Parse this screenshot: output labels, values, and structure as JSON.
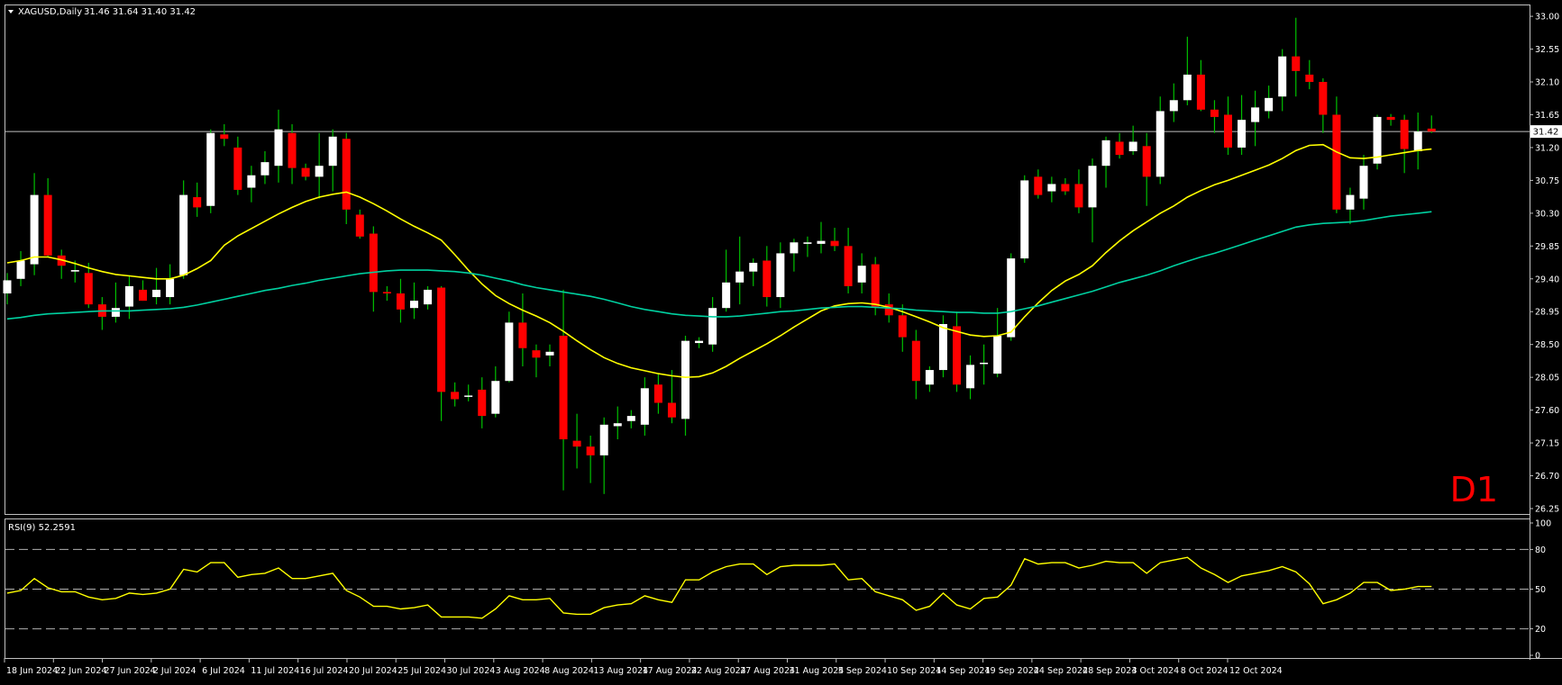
{
  "header": {
    "symbol_text": "XAGUSD,Daily",
    "ohlc_text": "31.46 31.64 31.40 31.42"
  },
  "timeframe_label": "D1",
  "rsi_header": "RSI(9) 52.2591",
  "colors": {
    "background": "#000000",
    "frame": "#c0c0c0",
    "bull": "#ffffff",
    "bear": "#ff0000",
    "wick": "#00c000",
    "ma_fast": "#ffff00",
    "ma_slow": "#00d0a0",
    "rsi": "#ffff00",
    "timeframe": "#ff0000"
  },
  "chart_data": [
    {
      "type": "candlestick",
      "symbol": "XAGUSD",
      "current_price": 31.42,
      "current_price_label": "31.42",
      "ylim": [
        26.25,
        33.1
      ],
      "y_ticks": [
        "33.00",
        "32.55",
        "32.10",
        "31.65",
        "31.20",
        "30.75",
        "30.30",
        "29.85",
        "29.40",
        "28.95",
        "28.50",
        "28.05",
        "27.60",
        "27.15",
        "26.70",
        "26.25"
      ],
      "x_ticks": [
        "18 Jun 2024",
        "22 Jun 2024",
        "27 Jun 2024",
        "2 Jul 2024",
        "6 Jul 2024",
        "11 Jul 2024",
        "16 Jul 2024",
        "20 Jul 2024",
        "25 Jul 2024",
        "30 Jul 2024",
        "3 Aug 2024",
        "8 Aug 2024",
        "13 Aug 2024",
        "17 Aug 2024",
        "22 Aug 2024",
        "27 Aug 2024",
        "31 Aug 2024",
        "5 Sep 2024",
        "10 Sep 2024",
        "14 Sep 2024",
        "19 Sep 2024",
        "24 Sep 2024",
        "28 Sep 2024",
        "3 Oct 2024",
        "8 Oct 2024",
        "12 Oct 2024"
      ],
      "candles": [
        [
          29.2,
          29.48,
          29.05,
          29.38
        ],
        [
          29.4,
          29.78,
          29.3,
          29.65
        ],
        [
          29.6,
          30.85,
          29.45,
          30.55
        ],
        [
          30.55,
          30.78,
          29.7,
          29.72
        ],
        [
          29.72,
          29.8,
          29.4,
          29.58
        ],
        [
          29.5,
          29.65,
          29.35,
          29.52
        ],
        [
          29.48,
          29.62,
          29.0,
          29.05
        ],
        [
          29.05,
          29.15,
          28.7,
          28.88
        ],
        [
          28.88,
          29.35,
          28.8,
          29.0
        ],
        [
          29.02,
          29.45,
          28.85,
          29.3
        ],
        [
          29.25,
          29.38,
          29.1,
          29.1
        ],
        [
          29.15,
          29.55,
          29.05,
          29.25
        ],
        [
          29.15,
          29.6,
          29.05,
          29.4
        ],
        [
          29.45,
          30.75,
          29.4,
          30.55
        ],
        [
          30.52,
          30.72,
          30.25,
          30.38
        ],
        [
          30.4,
          31.45,
          30.3,
          31.4
        ],
        [
          31.38,
          31.52,
          31.22,
          31.32
        ],
        [
          31.2,
          31.35,
          30.55,
          30.62
        ],
        [
          30.65,
          30.95,
          30.45,
          30.82
        ],
        [
          30.82,
          31.15,
          30.7,
          31.0
        ],
        [
          30.95,
          31.72,
          30.72,
          31.45
        ],
        [
          31.4,
          31.52,
          30.7,
          30.92
        ],
        [
          30.92,
          30.98,
          30.75,
          30.8
        ],
        [
          30.8,
          31.4,
          30.5,
          30.95
        ],
        [
          30.95,
          31.45,
          30.6,
          31.35
        ],
        [
          31.32,
          31.4,
          30.15,
          30.35
        ],
        [
          30.28,
          30.35,
          29.95,
          29.98
        ],
        [
          30.02,
          30.12,
          28.95,
          29.22
        ],
        [
          29.22,
          29.3,
          29.1,
          29.2
        ],
        [
          29.2,
          29.4,
          28.8,
          28.98
        ],
        [
          29.0,
          29.35,
          28.85,
          29.1
        ],
        [
          29.05,
          29.3,
          28.98,
          29.25
        ],
        [
          29.28,
          29.3,
          27.45,
          27.85
        ],
        [
          27.85,
          27.98,
          27.65,
          27.75
        ],
        [
          27.8,
          27.95,
          27.72,
          27.8
        ],
        [
          27.88,
          28.05,
          27.35,
          27.52
        ],
        [
          27.55,
          28.2,
          27.5,
          28.0
        ],
        [
          28.0,
          28.95,
          27.98,
          28.8
        ],
        [
          28.8,
          29.2,
          28.2,
          28.45
        ],
        [
          28.42,
          28.5,
          28.05,
          28.32
        ],
        [
          28.35,
          28.5,
          28.2,
          28.4
        ],
        [
          28.62,
          29.25,
          26.5,
          27.2
        ],
        [
          27.18,
          27.55,
          26.8,
          27.1
        ],
        [
          27.1,
          27.25,
          26.6,
          26.98
        ],
        [
          26.98,
          27.5,
          26.45,
          27.4
        ],
        [
          27.38,
          27.65,
          27.2,
          27.42
        ],
        [
          27.45,
          27.6,
          27.35,
          27.52
        ],
        [
          27.4,
          28.05,
          27.25,
          27.9
        ],
        [
          27.95,
          28.1,
          27.55,
          27.7
        ],
        [
          27.7,
          28.15,
          27.42,
          27.5
        ],
        [
          27.48,
          28.62,
          27.25,
          28.55
        ],
        [
          28.52,
          28.6,
          28.45,
          28.55
        ],
        [
          28.5,
          29.15,
          28.4,
          29.0
        ],
        [
          29.0,
          29.8,
          28.95,
          29.35
        ],
        [
          29.35,
          29.98,
          29.05,
          29.5
        ],
        [
          29.5,
          29.68,
          29.3,
          29.62
        ],
        [
          29.65,
          29.85,
          29.02,
          29.15
        ],
        [
          29.15,
          29.9,
          29.0,
          29.75
        ],
        [
          29.75,
          29.95,
          29.5,
          29.9
        ],
        [
          29.88,
          29.98,
          29.7,
          29.9
        ],
        [
          29.88,
          30.18,
          29.75,
          29.92
        ],
        [
          29.92,
          30.1,
          29.78,
          29.85
        ],
        [
          29.85,
          30.1,
          29.2,
          29.3
        ],
        [
          29.35,
          29.75,
          29.2,
          29.58
        ],
        [
          29.6,
          29.7,
          28.9,
          29.02
        ],
        [
          29.05,
          29.2,
          28.8,
          28.9
        ],
        [
          28.9,
          29.05,
          28.4,
          28.6
        ],
        [
          28.55,
          28.7,
          27.75,
          28.0
        ],
        [
          27.95,
          28.2,
          27.85,
          28.15
        ],
        [
          28.15,
          28.9,
          28.05,
          28.78
        ],
        [
          28.75,
          28.95,
          27.85,
          27.95
        ],
        [
          27.9,
          28.35,
          27.75,
          28.22
        ],
        [
          28.25,
          28.5,
          27.95,
          28.25
        ],
        [
          28.1,
          29.0,
          28.05,
          28.62
        ],
        [
          28.6,
          29.75,
          28.55,
          29.68
        ],
        [
          29.68,
          30.82,
          29.62,
          30.75
        ],
        [
          30.8,
          30.9,
          30.5,
          30.55
        ],
        [
          30.6,
          30.8,
          30.45,
          30.7
        ],
        [
          30.7,
          30.78,
          30.55,
          30.6
        ],
        [
          30.7,
          30.9,
          30.3,
          30.38
        ],
        [
          30.38,
          31.05,
          29.9,
          30.95
        ],
        [
          30.95,
          31.35,
          30.65,
          31.3
        ],
        [
          31.28,
          31.4,
          31.05,
          31.1
        ],
        [
          31.15,
          31.5,
          31.1,
          31.28
        ],
        [
          31.22,
          31.4,
          30.4,
          30.8
        ],
        [
          30.8,
          31.9,
          30.7,
          31.7
        ],
        [
          31.7,
          32.08,
          31.55,
          31.85
        ],
        [
          31.85,
          32.72,
          31.78,
          32.2
        ],
        [
          32.2,
          32.4,
          31.7,
          31.72
        ],
        [
          31.72,
          31.85,
          31.4,
          31.62
        ],
        [
          31.65,
          31.9,
          31.1,
          31.2
        ],
        [
          31.2,
          31.92,
          31.1,
          31.58
        ],
        [
          31.55,
          31.98,
          31.22,
          31.75
        ],
        [
          31.7,
          32.05,
          31.6,
          31.88
        ],
        [
          31.9,
          32.55,
          31.7,
          32.45
        ],
        [
          32.45,
          32.98,
          31.9,
          32.25
        ],
        [
          32.2,
          32.4,
          32.0,
          32.1
        ],
        [
          32.1,
          32.15,
          31.4,
          31.65
        ],
        [
          31.65,
          31.9,
          30.3,
          30.35
        ],
        [
          30.35,
          30.65,
          30.15,
          30.55
        ],
        [
          30.5,
          31.1,
          30.35,
          30.95
        ],
        [
          30.98,
          31.65,
          30.9,
          31.62
        ],
        [
          31.62,
          31.66,
          31.5,
          31.58
        ],
        [
          31.58,
          31.65,
          30.85,
          31.18
        ],
        [
          31.15,
          31.68,
          30.9,
          31.42
        ],
        [
          31.46,
          31.64,
          31.4,
          31.42
        ]
      ],
      "ma_fast": [
        29.62,
        29.65,
        29.7,
        29.7,
        29.66,
        29.61,
        29.55,
        29.5,
        29.46,
        29.44,
        29.42,
        29.4,
        29.4,
        29.45,
        29.54,
        29.65,
        29.86,
        29.99,
        30.09,
        30.19,
        30.29,
        30.38,
        30.46,
        30.52,
        30.56,
        30.59,
        30.52,
        30.43,
        30.33,
        30.22,
        30.12,
        30.03,
        29.93,
        29.73,
        29.52,
        29.33,
        29.17,
        29.06,
        28.97,
        28.89,
        28.8,
        28.68,
        28.55,
        28.43,
        28.32,
        28.24,
        28.18,
        28.14,
        28.1,
        28.07,
        28.05,
        28.06,
        28.11,
        28.2,
        28.31,
        28.41,
        28.51,
        28.62,
        28.74,
        28.85,
        28.96,
        29.03,
        29.06,
        29.07,
        29.05,
        29.01,
        28.95,
        28.88,
        28.81,
        28.73,
        28.68,
        28.63,
        28.61,
        28.62,
        28.67,
        28.88,
        29.07,
        29.24,
        29.37,
        29.46,
        29.58,
        29.76,
        29.92,
        30.06,
        30.18,
        30.3,
        30.4,
        30.52,
        30.61,
        30.69,
        30.75,
        30.82,
        30.89,
        30.96,
        31.05,
        31.16,
        31.23,
        31.24,
        31.14,
        31.06,
        31.05,
        31.07,
        31.1,
        31.13,
        31.16,
        31.18
      ],
      "ma_slow": [
        28.85,
        28.87,
        28.9,
        28.92,
        28.93,
        28.94,
        28.95,
        28.96,
        28.96,
        28.96,
        28.97,
        28.98,
        28.99,
        29.01,
        29.04,
        29.08,
        29.12,
        29.16,
        29.2,
        29.24,
        29.27,
        29.31,
        29.34,
        29.38,
        29.41,
        29.44,
        29.47,
        29.49,
        29.51,
        29.52,
        29.52,
        29.52,
        29.51,
        29.5,
        29.48,
        29.45,
        29.41,
        29.37,
        29.32,
        29.28,
        29.25,
        29.22,
        29.19,
        29.16,
        29.12,
        29.07,
        29.02,
        28.98,
        28.95,
        28.92,
        28.9,
        28.89,
        28.88,
        28.88,
        28.89,
        28.91,
        28.93,
        28.95,
        28.96,
        28.98,
        29.0,
        29.01,
        29.02,
        29.02,
        29.01,
        29.0,
        28.99,
        28.97,
        28.96,
        28.95,
        28.94,
        28.94,
        28.93,
        28.93,
        28.95,
        28.99,
        29.03,
        29.08,
        29.13,
        29.18,
        29.23,
        29.29,
        29.35,
        29.4,
        29.45,
        29.51,
        29.58,
        29.64,
        29.7,
        29.75,
        29.81,
        29.87,
        29.93,
        29.99,
        30.05,
        30.11,
        30.14,
        30.16,
        30.17,
        30.18,
        30.2,
        30.23,
        30.26,
        30.28,
        30.3,
        30.32
      ]
    },
    {
      "type": "line",
      "name": "RSI(9)",
      "ylim": [
        0,
        100
      ],
      "y_ticks": [
        "100",
        "80",
        "50",
        "20",
        "0"
      ],
      "levels": [
        80,
        50,
        20
      ],
      "values": [
        47,
        49,
        58,
        51,
        48,
        48,
        44,
        42,
        43,
        47,
        46,
        47,
        50,
        65,
        63,
        70,
        70,
        59,
        61,
        62,
        66,
        58,
        58,
        60,
        62,
        49,
        44,
        37,
        37,
        35,
        36,
        38,
        29,
        29,
        29,
        28,
        35,
        45,
        42,
        42,
        43,
        32,
        31,
        31,
        36,
        38,
        39,
        45,
        42,
        40,
        57,
        57,
        63,
        67,
        69,
        69,
        61,
        67,
        68,
        68,
        68,
        69,
        57,
        58,
        48,
        45,
        42,
        34,
        37,
        47,
        38,
        35,
        43,
        44,
        53,
        73,
        69,
        70,
        70,
        66,
        68,
        71,
        70,
        70,
        62,
        70,
        72,
        74,
        66,
        61,
        55,
        60,
        62,
        64,
        67,
        63,
        54,
        39,
        42,
        47,
        55,
        55,
        49,
        50,
        52,
        52
      ]
    }
  ]
}
